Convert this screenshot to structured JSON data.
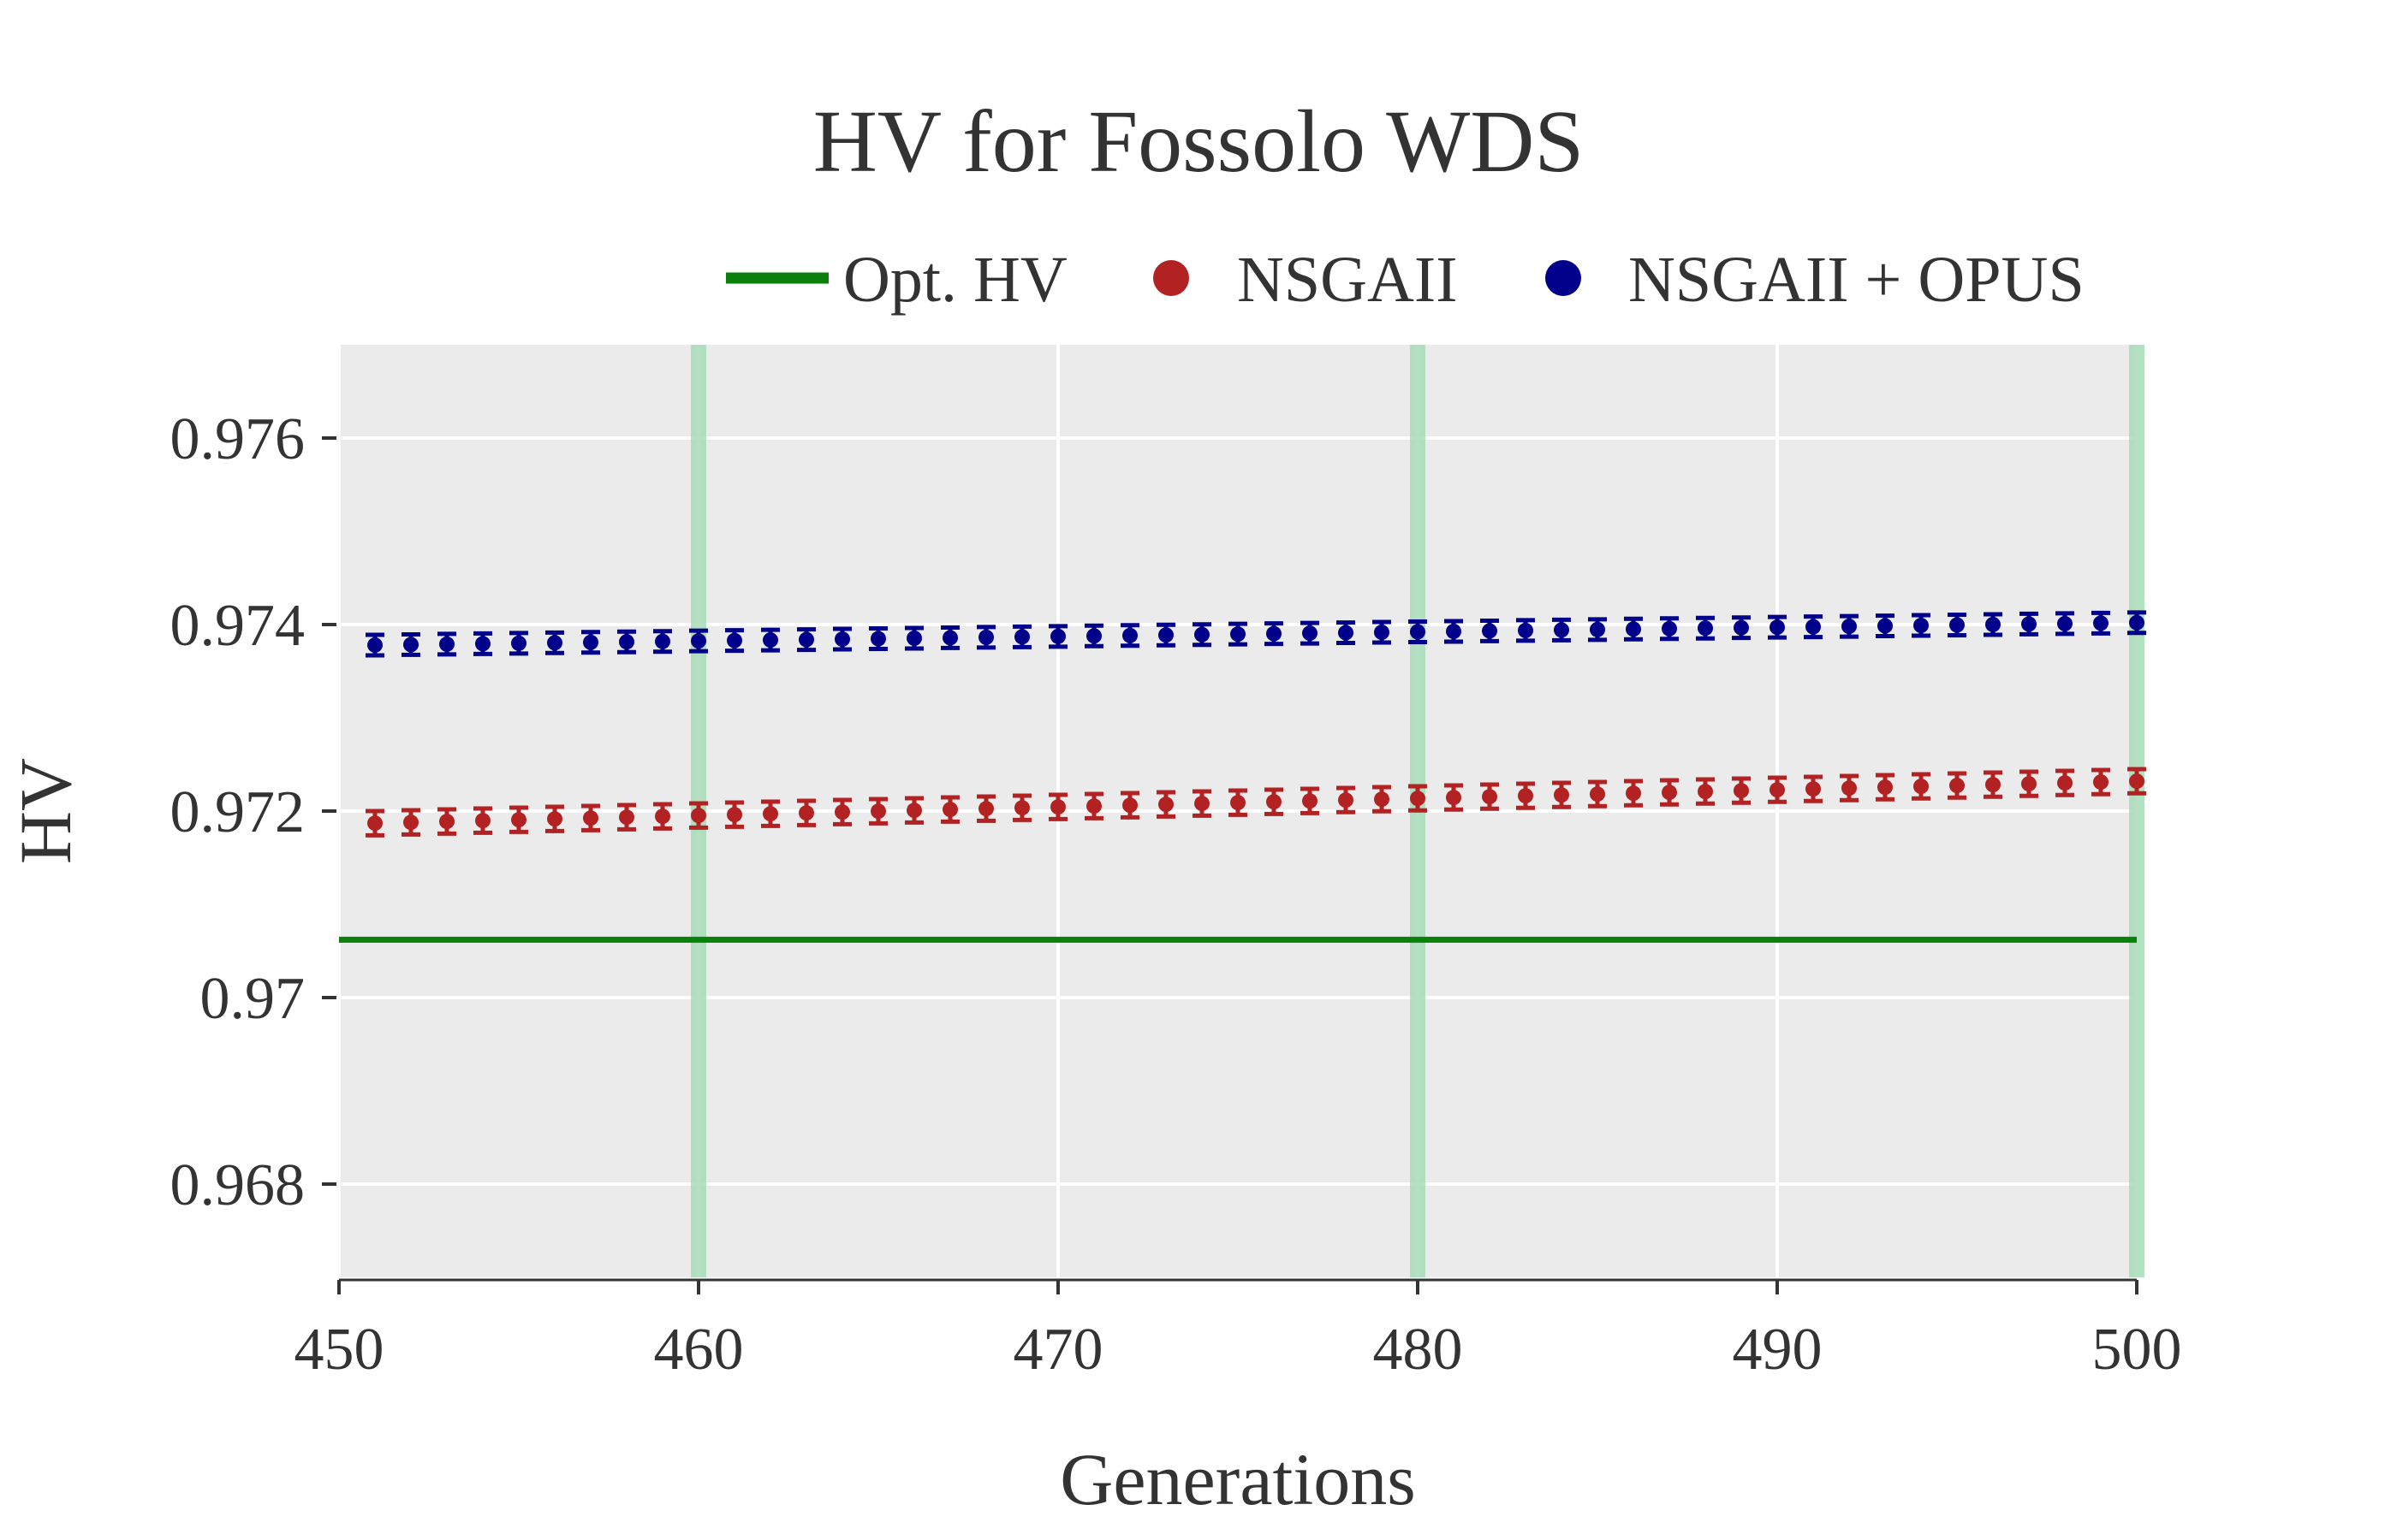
{
  "chart_data": {
    "type": "scatter",
    "title": "HV for Fossolo WDS",
    "xlabel": "Generations",
    "ylabel": "HV",
    "xlim": [
      450,
      500
    ],
    "ylim": [
      0.967,
      0.977
    ],
    "xticks": [
      450,
      460,
      470,
      480,
      490,
      500
    ],
    "yticks": [
      0.968,
      0.97,
      0.972,
      0.974,
      0.976
    ],
    "ytick_labels": [
      "0.968",
      "0.97",
      "0.972",
      "0.974",
      "0.976"
    ],
    "grid": true,
    "legend": {
      "position": "top",
      "entries": [
        {
          "label": "Opt. HV",
          "marker": "line",
          "color": "#0a7f0a"
        },
        {
          "label": "NSGAII",
          "marker": "circle",
          "color": "#b22222"
        },
        {
          "label": "NSGAII + OPUS",
          "marker": "circle",
          "color": "#00008b"
        }
      ]
    },
    "highlight_generations": [
      460,
      480,
      500
    ],
    "highlight_color": "#a8dcb8",
    "optimal_hv": {
      "name": "Opt. HV",
      "value": 0.97062,
      "color": "#0a7f0a"
    },
    "series": [
      {
        "name": "NSGAII",
        "color": "#b22222",
        "x_start": 451,
        "x_end": 500,
        "y_start": 0.97187,
        "y_end": 0.97232,
        "error": 0.00013
      },
      {
        "name": "NSGAII + OPUS",
        "color": "#00008b",
        "x_start": 451,
        "x_end": 500,
        "y_start": 0.97378,
        "y_end": 0.97402,
        "error": 0.00011
      }
    ]
  }
}
